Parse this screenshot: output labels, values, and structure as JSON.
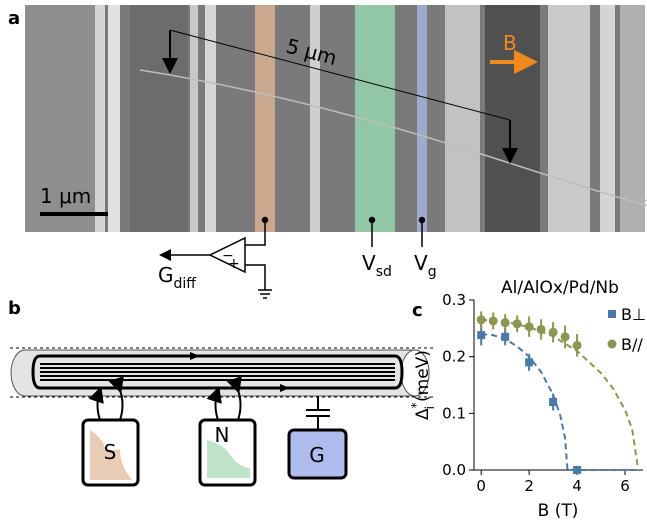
{
  "panel_a": {
    "label": "a",
    "scale_label": "5 μm",
    "field_label": "B",
    "scalebar_label": "1 μm",
    "amplifier": {
      "symbol": "G",
      "subscript": "diff"
    },
    "source_drain": {
      "symbol": "V",
      "subscript": "sd"
    },
    "gate": {
      "symbol": "V",
      "subscript": "g"
    }
  },
  "panel_b": {
    "label": "b",
    "boxes": [
      "S",
      "N",
      "G"
    ]
  },
  "chart_data": {
    "type": "scatter",
    "panel_label": "c",
    "title": "Al/AlOx/Pd/Nb",
    "x_label": "B (T)",
    "y_label": {
      "symbol": "Δ",
      "superscript": "*",
      "subscript": "i",
      "unit": "(meV)"
    },
    "xlim": [
      -0.3,
      6.75
    ],
    "xticks": [
      0,
      2,
      4,
      6
    ],
    "ylim": [
      0,
      0.3
    ],
    "yticks": [
      {
        "value": 0,
        "label": "0.0"
      },
      0.1,
      0.2,
      0.3
    ],
    "legend": "upper right",
    "series": [
      {
        "name": "B⊥",
        "color": "#4a7aa8",
        "marker": "square",
        "x": [
          0,
          1,
          2,
          3,
          4
        ],
        "values": [
          0.238,
          0.235,
          0.19,
          0.12,
          0
        ],
        "errors": [
          0.018,
          0.015,
          0.015,
          0.015,
          0
        ]
      },
      {
        "name": "B//",
        "color": "#8c9650",
        "marker": "circle",
        "x": [
          0,
          0.5,
          1,
          1.5,
          2,
          2.5,
          3,
          3.5,
          4
        ],
        "values": [
          0.265,
          0.263,
          0.26,
          0.258,
          0.253,
          0.248,
          0.243,
          0.235,
          0.22
        ],
        "errors": [
          0.015,
          0.015,
          0.015,
          0.015,
          0.018,
          0.018,
          0.018,
          0.02,
          0.02
        ]
      }
    ],
    "fits": [
      {
        "color": "#4a7aa8",
        "x": [
          0,
          0.5,
          1,
          1.5,
          2,
          2.5,
          3,
          3.3,
          3.5,
          3.6,
          6.5
        ],
        "values": [
          0.24,
          0.238,
          0.231,
          0.218,
          0.2,
          0.173,
          0.133,
          0.096,
          0.056,
          0,
          0
        ]
      },
      {
        "color": "#8c9650",
        "x": [
          0,
          1,
          2,
          3,
          4,
          5,
          5.5,
          6,
          6.3,
          6.55
        ],
        "values": [
          0.265,
          0.262,
          0.252,
          0.236,
          0.21,
          0.171,
          0.144,
          0.106,
          0.072,
          0
        ]
      }
    ]
  }
}
